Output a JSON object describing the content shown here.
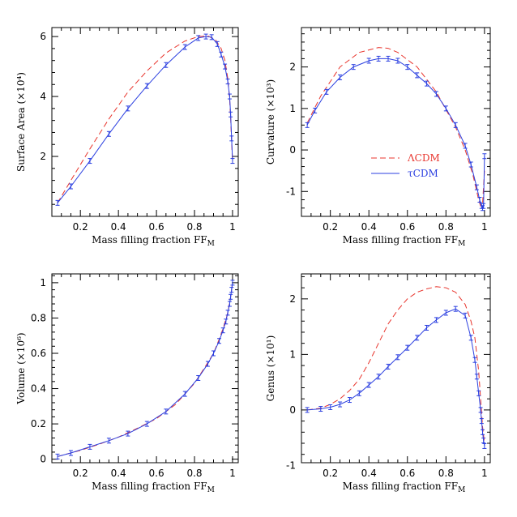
{
  "colors": {
    "lcdm": "#e8342c",
    "tcdm": "#2b3fe0"
  },
  "legend": {
    "lcdm": "ΛCDM",
    "tcdm": "τCDM"
  },
  "chart_data": [
    {
      "id": "surface-area",
      "type": "line",
      "xlabel": "Mass filling fraction FF",
      "xlabel_sub": "M",
      "ylabel": "Surface Area (×10⁴)",
      "xlim": [
        0.05,
        1.03
      ],
      "ylim": [
        0.0,
        6.3
      ],
      "xticks": [
        0.2,
        0.4,
        0.6,
        0.8,
        1
      ],
      "xtick_labels": [
        "0.2",
        "0.4",
        "0.6",
        "0.8",
        "1"
      ],
      "yticks": [
        2,
        4,
        6
      ],
      "ytick_labels": [
        "2",
        "4",
        "6"
      ],
      "series": [
        {
          "key": "lcdm",
          "style": "dashed",
          "x": [
            0.08,
            0.15,
            0.25,
            0.35,
            0.45,
            0.55,
            0.65,
            0.75,
            0.82,
            0.87,
            0.91,
            0.94,
            0.96,
            0.975,
            0.985,
            0.99,
            0.995,
            1.0
          ],
          "y": [
            0.45,
            1.2,
            2.25,
            3.25,
            4.15,
            4.85,
            5.45,
            5.85,
            6.0,
            6.02,
            5.9,
            5.6,
            5.2,
            4.6,
            3.9,
            3.3,
            2.5,
            1.8
          ]
        },
        {
          "key": "tcdm",
          "style": "solid",
          "errorbars": true,
          "x": [
            0.08,
            0.15,
            0.25,
            0.35,
            0.45,
            0.55,
            0.65,
            0.75,
            0.82,
            0.86,
            0.89,
            0.92,
            0.94,
            0.96,
            0.975,
            0.985,
            0.99,
            0.995,
            1.0
          ],
          "y": [
            0.45,
            1.0,
            1.85,
            2.75,
            3.6,
            4.35,
            5.05,
            5.65,
            5.95,
            6.0,
            5.98,
            5.75,
            5.4,
            5.0,
            4.5,
            4.0,
            3.4,
            2.6,
            1.85
          ]
        }
      ]
    },
    {
      "id": "curvature",
      "type": "line",
      "xlabel": "Mass filling fraction FF",
      "xlabel_sub": "M",
      "ylabel": "Curvature (×10³)",
      "xlim": [
        0.05,
        1.03
      ],
      "ylim": [
        -1.6,
        2.95
      ],
      "xticks": [
        0.2,
        0.4,
        0.6,
        0.8,
        1
      ],
      "xtick_labels": [
        "0.2",
        "0.4",
        "0.6",
        "0.8",
        "1"
      ],
      "yticks": [
        -1,
        0,
        1,
        2
      ],
      "ytick_labels": [
        "-1",
        "0",
        "1",
        "2"
      ],
      "legend_placement": "center-right",
      "series": [
        {
          "key": "lcdm",
          "style": "dashed",
          "x": [
            0.08,
            0.15,
            0.25,
            0.35,
            0.45,
            0.5,
            0.55,
            0.65,
            0.75,
            0.85,
            0.9,
            0.94,
            0.97,
            0.98,
            0.99,
            1.0
          ],
          "y": [
            0.65,
            1.3,
            2.0,
            2.35,
            2.47,
            2.45,
            2.35,
            2.0,
            1.4,
            0.55,
            0.0,
            -0.6,
            -1.2,
            -1.35,
            -1.3,
            -0.5
          ]
        },
        {
          "key": "tcdm",
          "style": "solid",
          "errorbars": true,
          "x": [
            0.08,
            0.12,
            0.18,
            0.25,
            0.32,
            0.4,
            0.45,
            0.5,
            0.55,
            0.6,
            0.65,
            0.7,
            0.75,
            0.8,
            0.85,
            0.9,
            0.93,
            0.96,
            0.975,
            0.985,
            0.99,
            0.995,
            1.0
          ],
          "y": [
            0.6,
            0.95,
            1.4,
            1.75,
            2.0,
            2.15,
            2.2,
            2.2,
            2.15,
            2.0,
            1.8,
            1.6,
            1.35,
            1.0,
            0.6,
            0.1,
            -0.35,
            -0.9,
            -1.2,
            -1.35,
            -1.4,
            -1.35,
            -0.15
          ]
        }
      ]
    },
    {
      "id": "volume",
      "type": "line",
      "xlabel": "Mass filling fraction FF",
      "xlabel_sub": "M",
      "ylabel": "Volume (×10⁶)",
      "xlim": [
        0.05,
        1.03
      ],
      "ylim": [
        -0.02,
        1.05
      ],
      "xticks": [
        0.2,
        0.4,
        0.6,
        0.8,
        1
      ],
      "xtick_labels": [
        "0.2",
        "0.4",
        "0.6",
        "0.8",
        "1"
      ],
      "yticks": [
        0,
        0.2,
        0.4,
        0.6,
        0.8,
        1
      ],
      "ytick_labels": [
        "0",
        "0.2",
        "0.4",
        "0.6",
        "0.8",
        "1"
      ],
      "series": [
        {
          "key": "lcdm",
          "style": "dashed",
          "x": [
            0.08,
            0.2,
            0.3,
            0.4,
            0.5,
            0.6,
            0.7,
            0.8,
            0.86,
            0.9,
            0.93,
            0.95,
            0.97,
            0.98,
            0.99,
            1.0
          ],
          "y": [
            0.015,
            0.05,
            0.085,
            0.125,
            0.175,
            0.23,
            0.31,
            0.43,
            0.53,
            0.6,
            0.68,
            0.74,
            0.81,
            0.86,
            0.92,
            1.0
          ]
        },
        {
          "key": "tcdm",
          "style": "solid",
          "errorbars": true,
          "x": [
            0.08,
            0.15,
            0.25,
            0.35,
            0.45,
            0.55,
            0.65,
            0.75,
            0.82,
            0.87,
            0.9,
            0.93,
            0.95,
            0.965,
            0.975,
            0.985,
            0.99,
            0.995,
            1.0
          ],
          "y": [
            0.015,
            0.035,
            0.07,
            0.105,
            0.145,
            0.2,
            0.27,
            0.37,
            0.46,
            0.54,
            0.6,
            0.67,
            0.73,
            0.78,
            0.83,
            0.88,
            0.92,
            0.96,
            1.0
          ]
        }
      ]
    },
    {
      "id": "genus",
      "type": "line",
      "xlabel": "Mass filling fraction FF",
      "xlabel_sub": "M",
      "ylabel": "Genus (×10¹)",
      "xlim": [
        0.05,
        1.03
      ],
      "ylim": [
        -0.95,
        2.45
      ],
      "xticks": [
        0.2,
        0.4,
        0.6,
        0.8,
        1
      ],
      "xtick_labels": [
        "0.2",
        "0.4",
        "0.6",
        "0.8",
        "1"
      ],
      "yticks": [
        -1,
        0,
        1,
        2
      ],
      "ytick_labels": [
        "-1",
        "0",
        "1",
        "2"
      ],
      "series": [
        {
          "key": "lcdm",
          "style": "dashed",
          "x": [
            0.08,
            0.15,
            0.2,
            0.25,
            0.3,
            0.35,
            0.4,
            0.45,
            0.5,
            0.55,
            0.6,
            0.65,
            0.7,
            0.75,
            0.8,
            0.85,
            0.9,
            0.93,
            0.95,
            0.97,
            0.98,
            0.99,
            1.0
          ],
          "y": [
            0.0,
            0.03,
            0.1,
            0.2,
            0.35,
            0.55,
            0.85,
            1.2,
            1.55,
            1.8,
            2.0,
            2.12,
            2.18,
            2.22,
            2.2,
            2.12,
            1.9,
            1.6,
            1.3,
            0.7,
            0.2,
            -0.3,
            -0.6
          ]
        },
        {
          "key": "tcdm",
          "style": "solid",
          "errorbars": true,
          "x": [
            0.08,
            0.15,
            0.2,
            0.25,
            0.3,
            0.35,
            0.4,
            0.45,
            0.5,
            0.55,
            0.6,
            0.65,
            0.7,
            0.75,
            0.8,
            0.85,
            0.9,
            0.93,
            0.95,
            0.96,
            0.97,
            0.98,
            0.985,
            0.99,
            0.995,
            1.0
          ],
          "y": [
            0.0,
            0.02,
            0.05,
            0.1,
            0.18,
            0.3,
            0.45,
            0.6,
            0.78,
            0.95,
            1.12,
            1.3,
            1.48,
            1.62,
            1.75,
            1.82,
            1.7,
            1.3,
            0.9,
            0.6,
            0.3,
            0.0,
            -0.2,
            -0.4,
            -0.55,
            -0.65
          ]
        }
      ]
    }
  ]
}
